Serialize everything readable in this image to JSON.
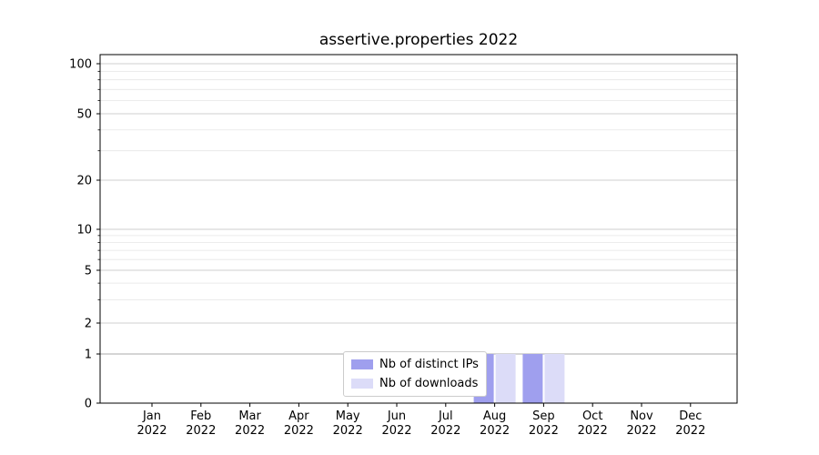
{
  "chart_data": {
    "type": "bar",
    "title": "assertive.properties 2022",
    "xlabel": "",
    "ylabel": "",
    "yscale": "symlog",
    "grid": true,
    "legend_position": "lower center",
    "categories": [
      "Jan 2022",
      "Feb 2022",
      "Mar 2022",
      "Apr 2022",
      "May 2022",
      "Jun 2022",
      "Jul 2022",
      "Aug 2022",
      "Sep 2022",
      "Oct 2022",
      "Nov 2022",
      "Dec 2022"
    ],
    "series": [
      {
        "name": "Nb of distinct IPs",
        "color": "#9f9fee",
        "values": [
          0,
          0,
          0,
          0,
          0,
          0,
          0,
          1,
          1,
          0,
          0,
          0
        ]
      },
      {
        "name": "Nb of downloads",
        "color": "#dcdcf8",
        "values": [
          0,
          0,
          0,
          0,
          0,
          0,
          0,
          1,
          1,
          0,
          0,
          0
        ]
      }
    ],
    "yticks": [
      0,
      1,
      2,
      5,
      10,
      20,
      50,
      100
    ],
    "minor_yticks": [
      3,
      4,
      6,
      7,
      8,
      9,
      30,
      40,
      60,
      70,
      80,
      90
    ],
    "ylim": [
      0,
      115
    ]
  }
}
